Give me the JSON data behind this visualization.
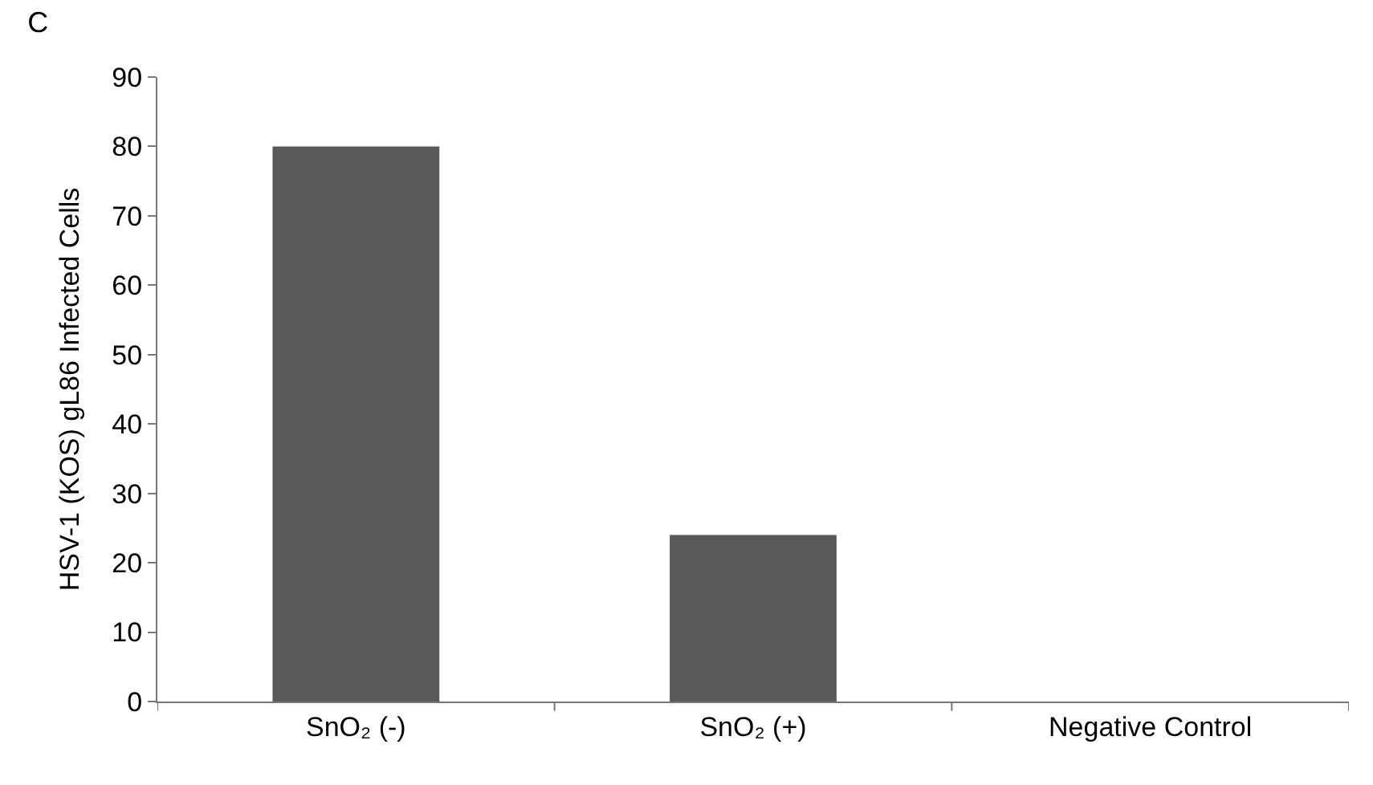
{
  "chart_data": {
    "type": "bar",
    "title": "C",
    "ylabel": "HSV-1 (KOS) gL86 Infected Cells",
    "categories": [
      "SnO₂ (-)",
      "SnO₂ (+)",
      "Negative Control"
    ],
    "values": [
      80,
      24,
      0
    ],
    "color": "#595959",
    "ylim": [
      0,
      90
    ],
    "yticks": [
      0,
      10,
      20,
      30,
      40,
      50,
      60,
      70,
      80,
      90
    ]
  }
}
